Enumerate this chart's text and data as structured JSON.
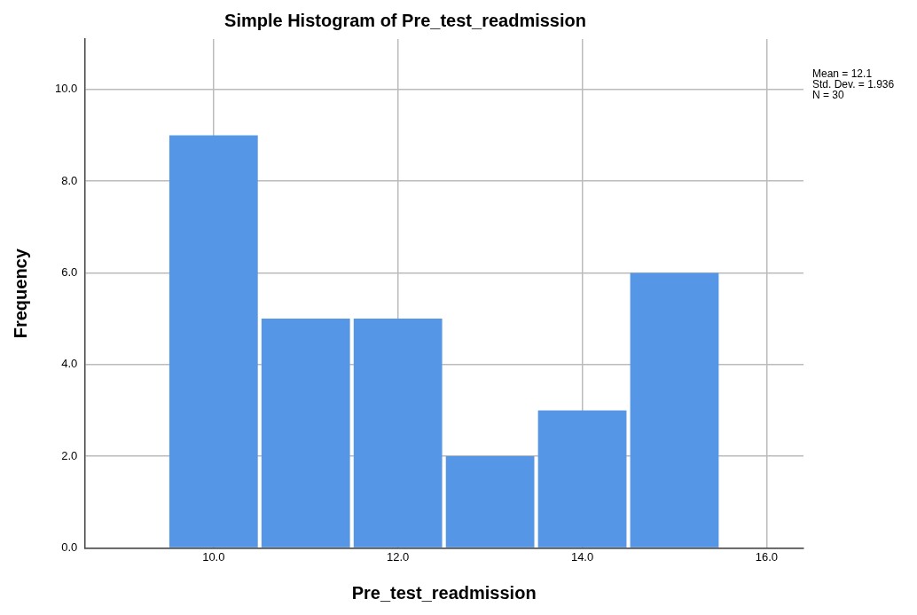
{
  "chart_data": {
    "type": "histogram",
    "title": "Simple Histogram of Pre_test_readmission",
    "xlabel": "Pre_test_readmission",
    "ylabel": "Frequency",
    "bins": [
      9.5,
      10.5,
      11.5,
      12.5,
      13.5,
      14.5,
      15.5
    ],
    "values": [
      9,
      5,
      5,
      2,
      3,
      6
    ],
    "color": "#5596e6",
    "xlim": [
      8.6,
      16.4
    ],
    "xticks": [
      {
        "value": 10,
        "label": "10.0"
      },
      {
        "value": 12,
        "label": "12.0"
      },
      {
        "value": 14,
        "label": "14.0"
      },
      {
        "value": 16,
        "label": "16.0"
      }
    ],
    "ylim": [
      0,
      11.1
    ],
    "yticks": [
      {
        "value": 0,
        "label": "0.0"
      },
      {
        "value": 2,
        "label": "2.0"
      },
      {
        "value": 4,
        "label": "4.0"
      },
      {
        "value": 6,
        "label": "6.0"
      },
      {
        "value": 8,
        "label": "8.0"
      },
      {
        "value": 10,
        "label": "10.0"
      }
    ],
    "grid": true,
    "annotations": [
      "Mean = 12.1",
      "Std. Dev. = 1.936",
      "N = 30"
    ]
  }
}
